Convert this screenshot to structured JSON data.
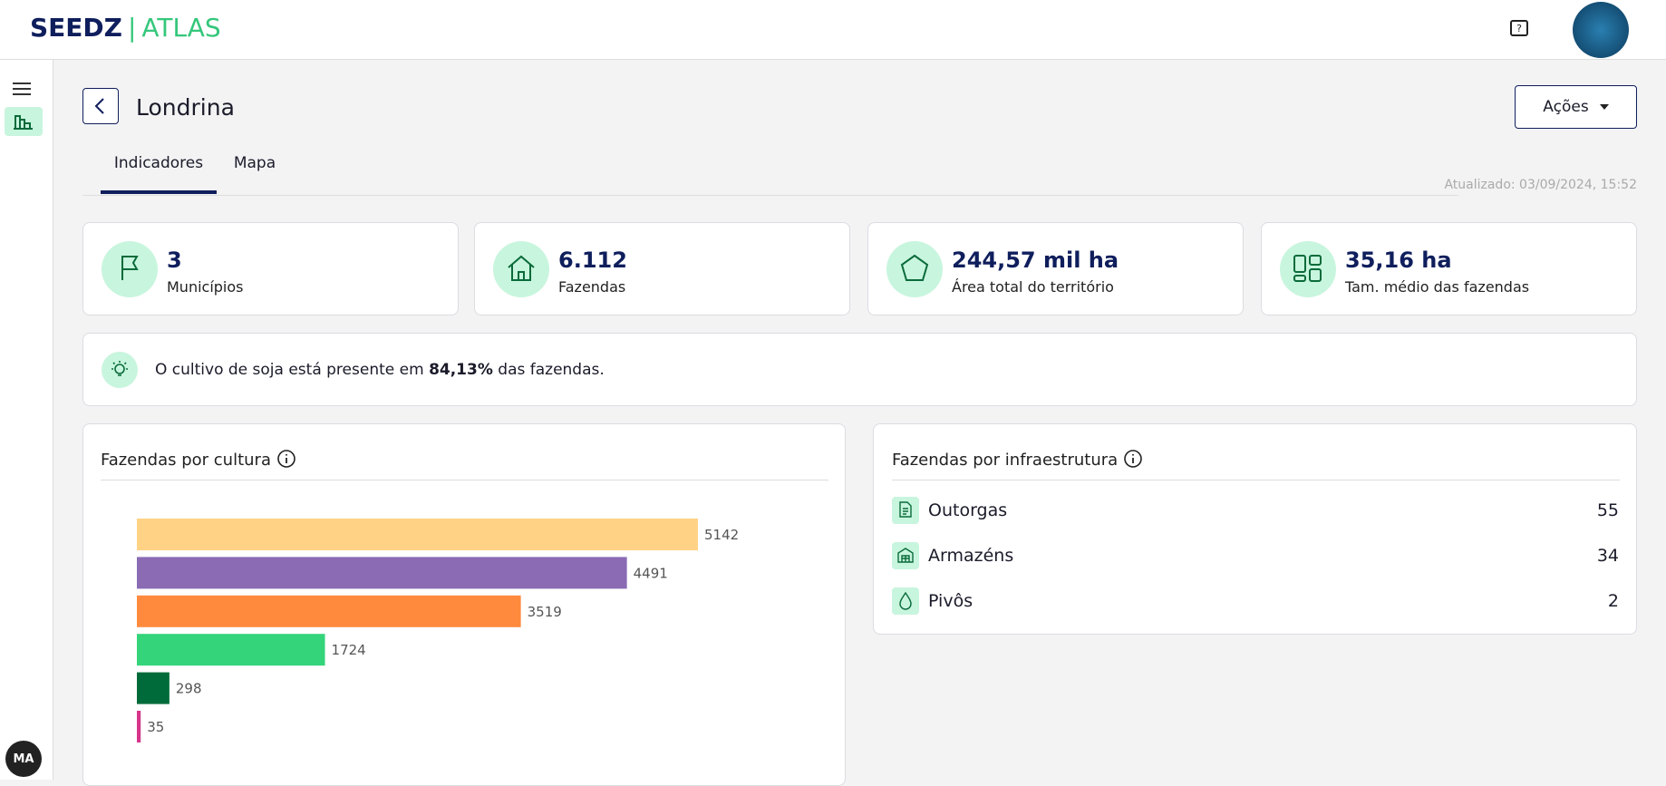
{
  "header": {
    "brand": "SEEDZ",
    "product": "ATLAS",
    "avatar": "MA"
  },
  "page": {
    "title": "Londrina",
    "actions": "Ações",
    "tabs": [
      "Indicadores",
      "Mapa"
    ],
    "updated": "Atualizado: 03/09/2024, 15:52"
  },
  "stats": [
    {
      "value": "3",
      "label": "Municípios"
    },
    {
      "value": "6.112",
      "label": "Fazendas"
    },
    {
      "value": "244,57 mil ha",
      "label": "Área total do território"
    },
    {
      "value": "35,16 ha",
      "label": "Tam. médio das fazendas"
    }
  ],
  "insight": {
    "before": "O cultivo de soja está presente em",
    "bold": "84,13%",
    "after": "das fazendas."
  },
  "chart_data": {
    "type": "bar",
    "orientation": "horizontal",
    "title": "Fazendas por cultura",
    "categories": [
      null,
      null,
      null,
      null,
      null,
      null
    ],
    "values": [
      5142,
      4491,
      3519,
      1724,
      298,
      35
    ],
    "colors": [
      "#ffd285",
      "#8a6bb4",
      "#ff8a3d",
      "#34d47a",
      "#006b3a",
      "#d6358a"
    ]
  },
  "infra": {
    "title": "Fazendas por infraestrutura",
    "items": [
      {
        "name": "Outorgas",
        "value": "55"
      },
      {
        "name": "Armazéns",
        "value": "34"
      },
      {
        "name": "Pivôs",
        "value": "2"
      }
    ]
  }
}
